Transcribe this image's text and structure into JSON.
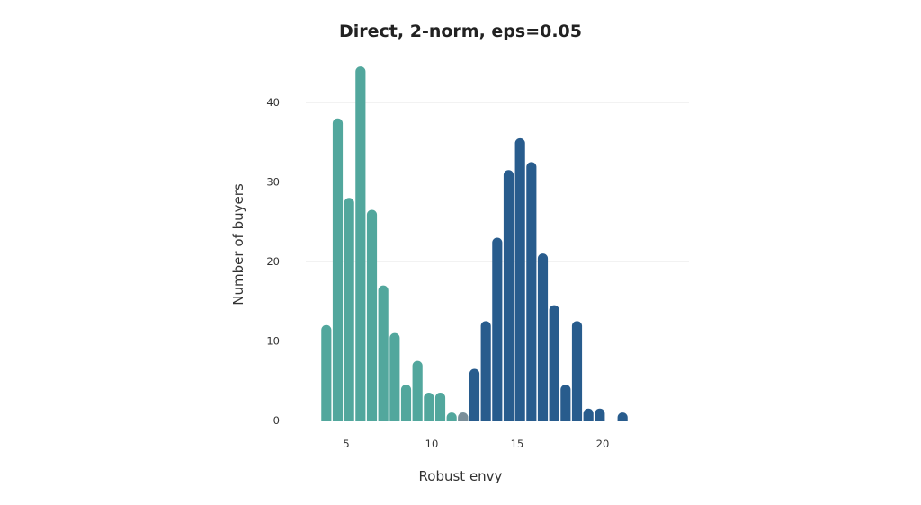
{
  "chart_data": {
    "type": "bar",
    "title": "Direct, 2-norm, eps=0.05",
    "xlabel": "Robust envy",
    "ylabel": "Number of buyers",
    "xlim": [
      2.5,
      25
    ],
    "ylim": [
      0,
      45
    ],
    "x_ticks": [
      5,
      10,
      15,
      20
    ],
    "y_ticks": [
      0,
      10,
      20,
      30,
      40
    ],
    "grid": true,
    "bin_width": 0.6667,
    "colors": {
      "series_a": "#52a79d",
      "series_b": "#285c8d",
      "overlap": "#7a8e99"
    },
    "series": [
      {
        "x_start": [
          3.5,
          4.1667,
          4.8333,
          5.5,
          6.1667,
          6.8333,
          7.5,
          8.1667,
          8.8333,
          9.5,
          10.1667,
          10.8333,
          11.5
        ],
        "values": [
          12,
          38,
          28,
          44.5,
          26.5,
          17,
          11,
          4.5,
          7.5,
          3.5,
          3.5,
          1,
          1
        ]
      },
      {
        "x_start": [
          11.5,
          12.1667,
          12.8333,
          13.5,
          14.1667,
          14.8333,
          15.5,
          16.1667,
          16.8333,
          17.5,
          18.1667,
          18.8333,
          19.5,
          20.8333
        ],
        "values": [
          1,
          6.5,
          12.5,
          23,
          31.5,
          35.5,
          32.5,
          21,
          14.5,
          4.5,
          12.5,
          1.5,
          1.5,
          1
        ]
      }
    ]
  }
}
